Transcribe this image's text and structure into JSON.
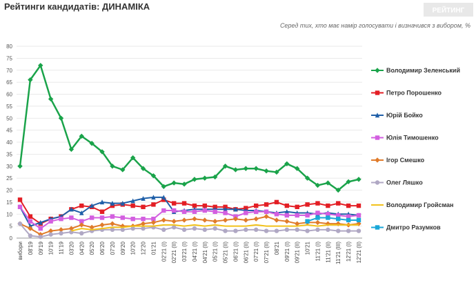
{
  "chart_data": {
    "type": "line",
    "title": "Рейтинги кандидатів: ДИНАМІКА",
    "subtitle": "Серед тих, хто має намір голосувати і визначився з вибором, %",
    "logo": "РЕЙТИНГ",
    "categories": [
      "вибори",
      "08'19",
      "09'19",
      "10'19",
      "11'19",
      "03'20",
      "04'20",
      "05'20",
      "06'20",
      "07'20",
      "09'20",
      "10'20",
      "12'20",
      "01'21",
      "02'21 (I)",
      "02'21 (II)",
      "03'21 (I)",
      "04'21 (I)",
      "04'21 (II)",
      "05'21 (I)",
      "05'21 (II)",
      "06'21 (I)",
      "06'21 (II)",
      "07'21 (I)",
      "07'21 (II)",
      "08'21",
      "09'21 (I)",
      "09'21 (II)",
      "10'21",
      "11'21 (I)",
      "11'21 (II)",
      "11'21 (III)",
      "12'21 (I)",
      "12'21 (II)"
    ],
    "ylim": [
      0,
      80
    ],
    "yticks": [
      0,
      5,
      10,
      15,
      20,
      25,
      30,
      35,
      40,
      45,
      50,
      55,
      60,
      65,
      70,
      75,
      80
    ],
    "grid": true,
    "series": [
      {
        "name": "Володимир Зеленський",
        "color": "#1aa34a",
        "marker": "diamond",
        "values": [
          30,
          66,
          72,
          58,
          50,
          37,
          42.5,
          39.5,
          36,
          30,
          28.5,
          33.5,
          29,
          26,
          21.5,
          23,
          22.5,
          24.5,
          25,
          25.5,
          30,
          28.5,
          29,
          29,
          28,
          27.5,
          31,
          29,
          25,
          22,
          23,
          20,
          23.5,
          24.5
        ]
      },
      {
        "name": "Петро Порошенко",
        "color": "#e31e24",
        "marker": "square",
        "values": [
          16,
          9,
          6,
          8,
          9,
          12,
          13.5,
          13,
          11,
          13.5,
          14,
          13.5,
          13,
          14,
          16,
          14.5,
          14.5,
          13.5,
          13.5,
          13,
          13,
          12,
          12.5,
          13.5,
          14,
          15,
          13.5,
          13,
          14,
          14.5,
          13.5,
          14.5,
          13.5,
          13.5
        ]
      },
      {
        "name": "Юрій Бойко",
        "color": "#1f5fa8",
        "marker": "triangle",
        "values": [
          13,
          5,
          6.5,
          8,
          9,
          12,
          10.5,
          13.5,
          15,
          14.5,
          14.5,
          15.5,
          16.5,
          17,
          17,
          11,
          11.5,
          12,
          12,
          12,
          12,
          12,
          11.5,
          11.5,
          11,
          10.5,
          11,
          10.5,
          10.5,
          10,
          10.5,
          10,
          10,
          9.5
        ]
      },
      {
        "name": "Юлія Тимошенко",
        "color": "#d35fe0",
        "marker": "square",
        "values": [
          13,
          7,
          4,
          7,
          8,
          8.5,
          7,
          8.5,
          8.5,
          9,
          8.5,
          8,
          8,
          8,
          11.5,
          11.5,
          11,
          11,
          11.5,
          11,
          10.5,
          9,
          10.5,
          11,
          11,
          10,
          9.5,
          9.5,
          9.5,
          10.5,
          10,
          9.5,
          9,
          9.5
        ]
      },
      {
        "name": "Ігор Смешко",
        "color": "#e07b2a",
        "marker": "diamond",
        "values": [
          6,
          4,
          1.5,
          3,
          3.5,
          4,
          5.5,
          4.5,
          5.5,
          6,
          5,
          5,
          6,
          6.5,
          7.5,
          7,
          7.5,
          8,
          7.5,
          7,
          7.5,
          8,
          7.5,
          8,
          9,
          7.5,
          7,
          6,
          6.5,
          6.5,
          6,
          6,
          5.5,
          6
        ]
      },
      {
        "name": "Олег Ляшко",
        "color": "#b0a8c4",
        "marker": "circle",
        "values": [
          6,
          1,
          0.5,
          1.5,
          2,
          2.5,
          2,
          3,
          3.5,
          3.5,
          3.5,
          4,
          4,
          4.5,
          3.5,
          4.5,
          3.5,
          4,
          3.5,
          4,
          3,
          3,
          3.5,
          3.5,
          3,
          3,
          3.5,
          3.5,
          3,
          3.5,
          3.5,
          3,
          3,
          3
        ]
      },
      {
        "name": "Володимир Гройсман",
        "color": "#f2c21b",
        "marker": "none",
        "values": [
          null,
          null,
          null,
          null,
          null,
          3,
          4,
          3.5,
          4,
          4.5,
          4.5,
          5,
          5,
          5,
          5.5,
          5.5,
          5,
          5.5,
          5,
          5.5,
          5,
          5,
          5,
          5.5,
          5,
          5,
          5,
          5,
          5.5,
          5,
          5.5,
          5.5,
          5.5,
          5.5
        ]
      },
      {
        "name": "Дмитро Разумков",
        "color": "#1aa7d8",
        "marker": "square",
        "values": [
          null,
          null,
          null,
          null,
          null,
          null,
          null,
          null,
          null,
          null,
          null,
          null,
          null,
          null,
          null,
          null,
          null,
          null,
          null,
          null,
          null,
          null,
          null,
          null,
          null,
          null,
          null,
          null,
          7,
          8.5,
          8.5,
          8,
          7.5,
          7.5
        ]
      }
    ]
  }
}
